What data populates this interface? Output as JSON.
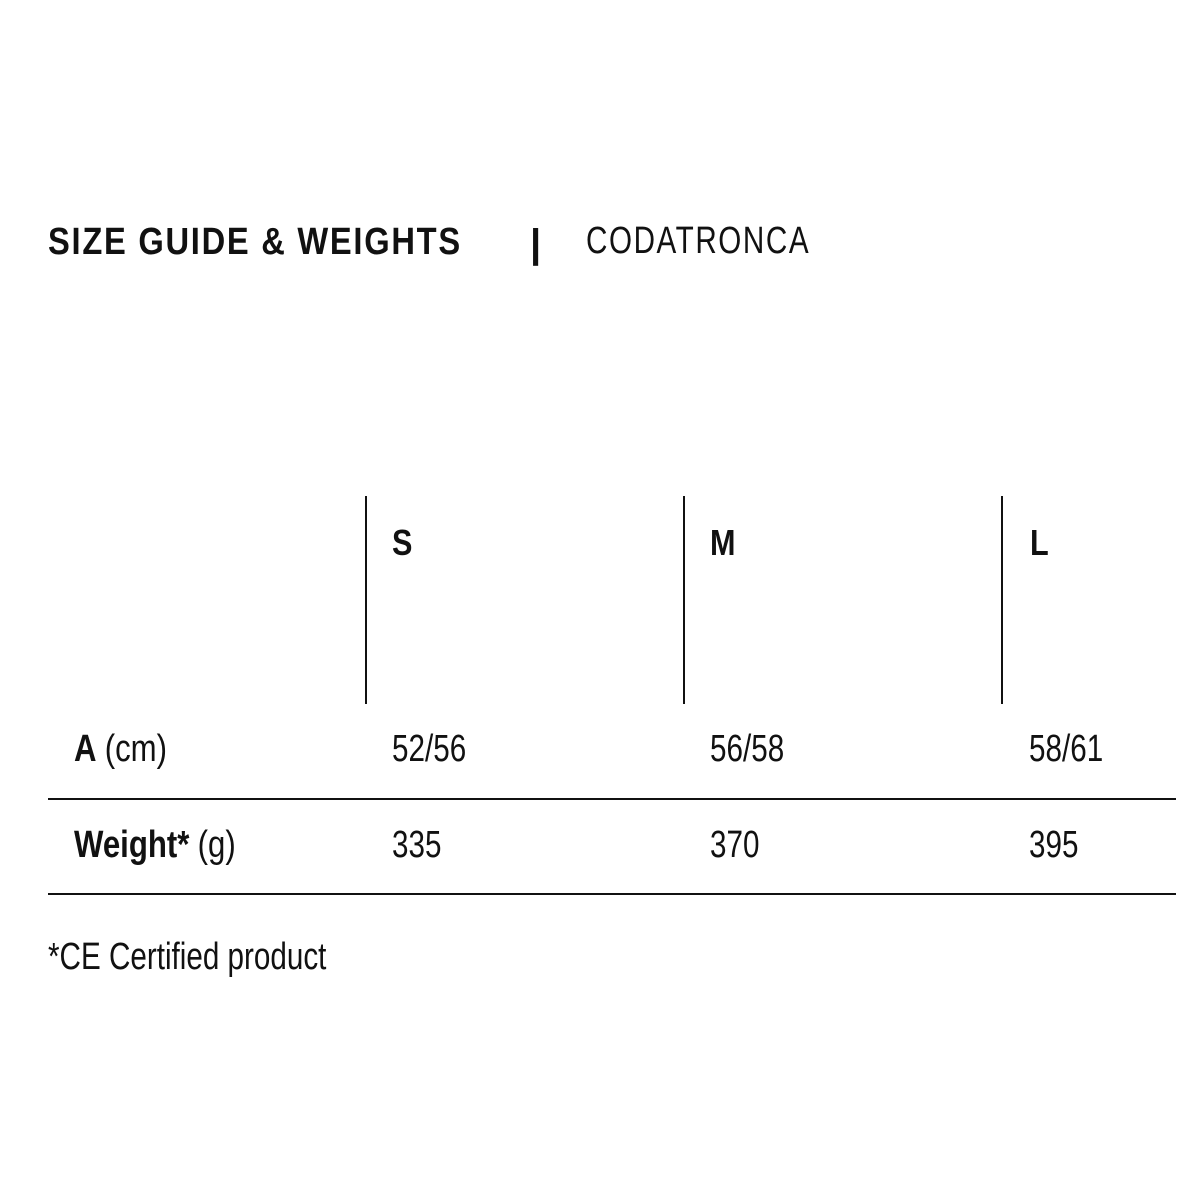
{
  "title": {
    "main": "SIZE GUIDE & WEIGHTS",
    "separator": "|",
    "product": "CODATRONCA"
  },
  "table": {
    "sizes": [
      "S",
      "M",
      "L"
    ],
    "rows": [
      {
        "label": "A",
        "unit": "(cm)",
        "values": [
          "52/56",
          "56/58",
          "58/61"
        ]
      },
      {
        "label": "Weight*",
        "unit": "(g)",
        "values": [
          "335",
          "370",
          "395"
        ]
      }
    ]
  },
  "footnote": "*CE Certified product"
}
